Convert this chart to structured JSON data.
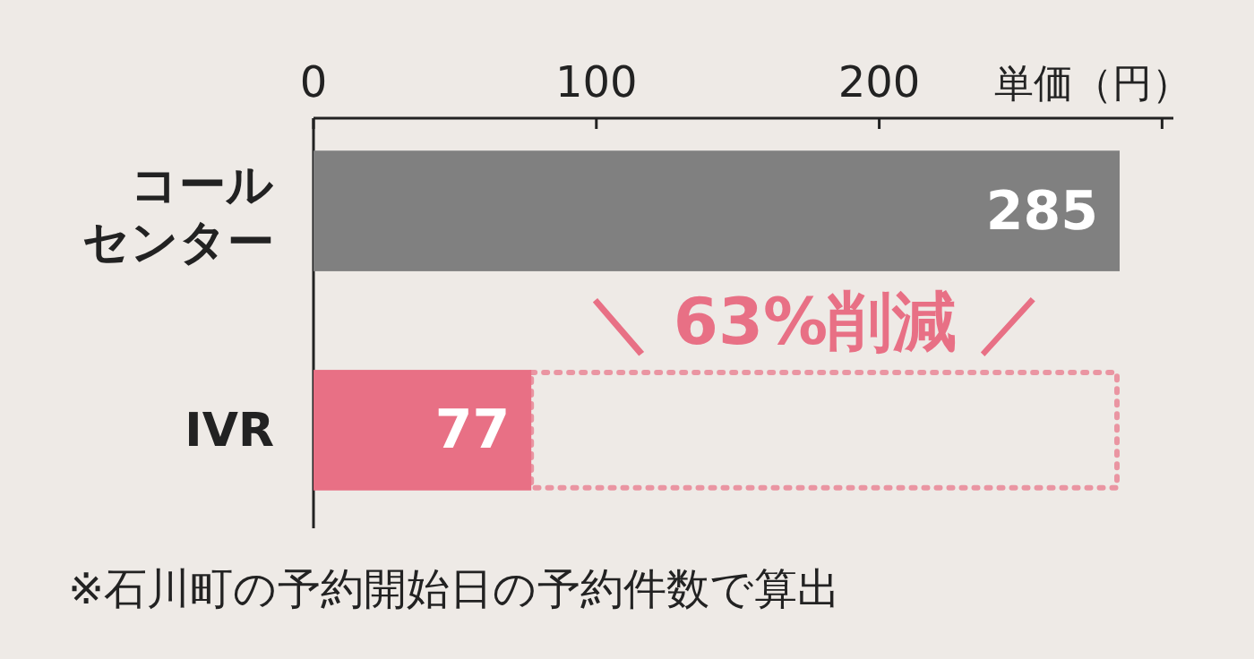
{
  "chart_data": {
    "type": "bar",
    "orientation": "horizontal",
    "xlabel": "単価（円）",
    "categories": [
      "コールセンター",
      "IVR"
    ],
    "values": [
      285,
      77
    ],
    "colors": [
      "#808080",
      "#e87085"
    ],
    "xlim": [
      0,
      304
    ],
    "xticks": [
      0,
      100,
      200,
      {
        "value": 300,
        "label": null
      }
    ],
    "data_labels": true,
    "annotations": [
      "＼ 63%削減 ／",
      "※石川町の予約開始日の予約件数で算出"
    ]
  }
}
